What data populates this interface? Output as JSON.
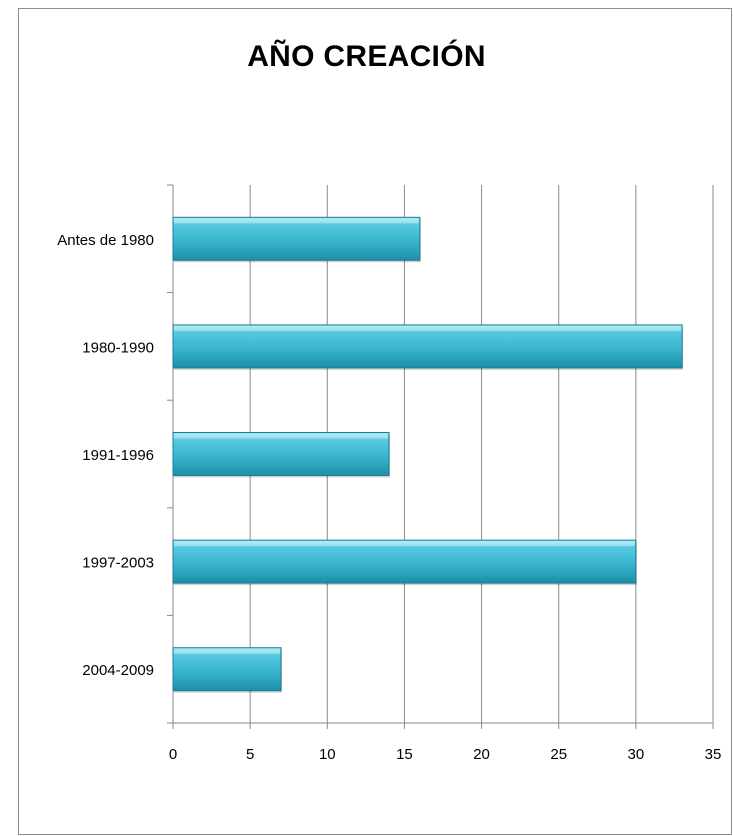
{
  "chart_data": {
    "type": "bar",
    "orientation": "horizontal",
    "title": "AÑO CREACIÓN",
    "xlabel": "",
    "ylabel": "",
    "categories": [
      "Antes de 1980",
      "1980-1990",
      "1991-1996",
      "1997-2003",
      "2004-2009"
    ],
    "values": [
      16,
      33,
      14,
      30,
      7
    ],
    "xlim": [
      0,
      35
    ],
    "xticks": [
      "0",
      "5",
      "10",
      "15",
      "20",
      "25",
      "30",
      "35"
    ],
    "grid": true,
    "legend": "none",
    "bar_color": "#3ab5cf"
  }
}
